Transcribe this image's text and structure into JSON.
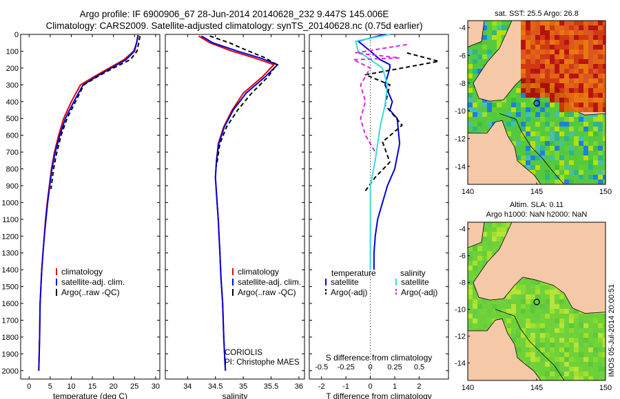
{
  "header": {
    "line1": "Argo profile: IF 6900906_67 28-Jun-2014 20140628_232 9.447S 145.006E",
    "line2": "Climatology: CARS2009. Satellite-adjusted climatology: synTS_20140628.nc (0.75d earlier)"
  },
  "colors": {
    "climatology": "#e00000",
    "satellite": "#0000dd",
    "argo": "#000000",
    "satellite_salinity": "#33dddd",
    "argo_salinity": "#dd22dd",
    "land": "#f5c8a8",
    "sea": "#66cc33"
  },
  "chart_data": [
    {
      "id": "temperature",
      "type": "line",
      "xlabel": "temperature (deg C)",
      "xlim": [
        -2,
        31
      ],
      "xticks": [
        0,
        5,
        10,
        15,
        20,
        25,
        30
      ],
      "ylim": [
        0,
        2050
      ],
      "yticks": [
        0,
        100,
        200,
        300,
        400,
        500,
        600,
        700,
        800,
        900,
        1000,
        1100,
        1200,
        1300,
        1400,
        1500,
        1600,
        1700,
        1800,
        1900,
        2000
      ],
      "legend": [
        "climatology",
        "satellite-adj. clim.",
        "Argo(..raw -QC)"
      ],
      "series": [
        {
          "name": "climatology",
          "color": "#e00000",
          "dash": "",
          "x": [
            25.9,
            25.5,
            24.8,
            22.5,
            19.0,
            15.5,
            12.2,
            10.0,
            8.2,
            7.0,
            6.0,
            5.3,
            4.8,
            4.3,
            3.9,
            3.6,
            3.3,
            3.0,
            2.8,
            2.6,
            2.5,
            2.3
          ],
          "y": [
            5,
            50,
            100,
            150,
            200,
            250,
            300,
            400,
            500,
            600,
            700,
            800,
            900,
            1000,
            1100,
            1200,
            1300,
            1400,
            1500,
            1600,
            1800,
            2000
          ]
        },
        {
          "name": "satellite-adj. clim.",
          "color": "#0000dd",
          "dash": "",
          "x": [
            25.8,
            25.5,
            25.0,
            23.0,
            19.5,
            16.0,
            12.8,
            10.6,
            8.6,
            7.3,
            6.2,
            5.4,
            4.9,
            4.4,
            4.0,
            3.6,
            3.3,
            3.0,
            2.8,
            2.6,
            2.5,
            2.3
          ],
          "y": [
            5,
            50,
            100,
            150,
            200,
            250,
            300,
            400,
            500,
            600,
            700,
            800,
            900,
            1000,
            1100,
            1200,
            1300,
            1400,
            1500,
            1600,
            1800,
            2000
          ]
        },
        {
          "name": "Argo(..raw -QC)",
          "color": "#000000",
          "dash": "6,4",
          "x": [
            26.3,
            26.0,
            25.6,
            24.0,
            20.0,
            16.3,
            13.0,
            11.0,
            9.0,
            7.6,
            6.6,
            5.8,
            5.2
          ],
          "y": [
            10,
            50,
            100,
            150,
            200,
            250,
            300,
            400,
            500,
            600,
            700,
            800,
            920
          ]
        }
      ]
    },
    {
      "id": "salinity",
      "type": "line",
      "xlabel": "salinity",
      "xlim": [
        33.6,
        36.1
      ],
      "xticks": [
        34,
        34.5,
        35,
        35.5,
        36
      ],
      "ylim": [
        0,
        2050
      ],
      "legend": [
        "climatology",
        "satellite-adj. clim.",
        "Argo(..raw -QC)"
      ],
      "annotations": [
        "CORIOLIS",
        "PI: Christophe MAES"
      ],
      "series": [
        {
          "name": "climatology",
          "color": "#e00000",
          "dash": "",
          "x": [
            34.2,
            34.4,
            34.8,
            35.2,
            35.55,
            35.35,
            35.0,
            34.8,
            34.65,
            34.55,
            34.52,
            34.5,
            34.52,
            34.55,
            34.58,
            34.6,
            34.63,
            34.65,
            34.67,
            34.68
          ],
          "y": [
            10,
            50,
            100,
            140,
            180,
            250,
            350,
            450,
            550,
            650,
            750,
            850,
            950,
            1100,
            1300,
            1450,
            1600,
            1800,
            1950,
            2000
          ]
        },
        {
          "name": "satellite-adj. clim.",
          "color": "#0000dd",
          "dash": "",
          "x": [
            34.25,
            34.45,
            34.9,
            35.3,
            35.62,
            35.4,
            35.05,
            34.82,
            34.66,
            34.56,
            34.52,
            34.5,
            34.52,
            34.55,
            34.58,
            34.6,
            34.63,
            34.65,
            34.67,
            34.68
          ],
          "y": [
            10,
            50,
            100,
            140,
            180,
            250,
            350,
            450,
            550,
            650,
            750,
            850,
            950,
            1100,
            1300,
            1450,
            1600,
            1800,
            1950,
            2000
          ]
        },
        {
          "name": "Argo(..raw -QC)",
          "color": "#000000",
          "dash": "6,4",
          "x": [
            34.4,
            34.75,
            35.1,
            35.4,
            35.6,
            35.45,
            35.15,
            34.9,
            34.7,
            34.58,
            34.52
          ],
          "y": [
            10,
            50,
            100,
            140,
            180,
            250,
            350,
            450,
            550,
            650,
            780
          ]
        }
      ]
    },
    {
      "id": "difference",
      "type": "line",
      "xlabel": "T difference from climatology",
      "xlabel2": "S difference from climatology",
      "xlim": [
        -2.5,
        3.2
      ],
      "xticks": [
        -2,
        -1,
        0,
        1,
        2
      ],
      "xticks2_values": [
        -2,
        -1,
        0,
        1,
        2
      ],
      "xticks2_labels": [
        "-0.5",
        "-0.25",
        "0",
        "0.25",
        "0.5"
      ],
      "ylim": [
        0,
        2050
      ],
      "legend": {
        "temperature_header": "temperature",
        "salinity_header": "salinity",
        "items": [
          "satellite",
          "Argo(-adj)",
          "satellite",
          "Argo(-adj)"
        ]
      },
      "series": [
        {
          "name": "temperature satellite",
          "color": "#0000dd",
          "dash": "",
          "x": [
            0.6,
            -0.5,
            0.0,
            0.4,
            0.8,
            0.8,
            0.6,
            0.9,
            0.8,
            1.1,
            1.2,
            1.0,
            0.7,
            0.5,
            0.3,
            0.2,
            0.15,
            0.15
          ],
          "y": [
            0,
            40,
            100,
            150,
            180,
            200,
            300,
            400,
            450,
            500,
            650,
            800,
            900,
            1000,
            1100,
            1200,
            1300,
            1400
          ]
        },
        {
          "name": "temperature Argo(-adj)",
          "color": "#000000",
          "dash": "6,4",
          "x": [
            1.5,
            2.8,
            1.3,
            -0.2,
            0.8,
            0.6,
            1.3,
            0.5,
            0.8,
            0.2,
            -0.2
          ],
          "y": [
            110,
            160,
            200,
            240,
            300,
            420,
            540,
            640,
            760,
            850,
            930
          ]
        },
        {
          "name": "salinity satellite",
          "color": "#33dddd",
          "dash": "",
          "x": [
            0.8,
            -0.6,
            -0.5,
            0.0,
            0.5,
            0.7,
            0.6,
            0.4,
            0.3,
            0.2,
            0.0,
            0.0,
            0.0
          ],
          "y": [
            0,
            40,
            100,
            150,
            200,
            300,
            420,
            550,
            650,
            750,
            900,
            1100,
            1400
          ]
        },
        {
          "name": "salinity Argo(-adj)",
          "color": "#dd22dd",
          "dash": "6,4",
          "x": [
            1.5,
            -0.6,
            1.2,
            -0.7,
            0.0,
            -0.4,
            -0.2,
            -0.4,
            -0.2,
            0.2
          ],
          "y": [
            60,
            110,
            140,
            150,
            200,
            300,
            400,
            500,
            600,
            700
          ]
        }
      ]
    }
  ],
  "maps": [
    {
      "id": "sst-map",
      "title1": "sat. SST: 25.5 Argo: 26.8",
      "title2": "",
      "xticks": [
        140,
        145,
        150
      ],
      "yticks": [
        -4,
        -6,
        -8,
        -10,
        -12,
        -14
      ],
      "xlim": [
        140,
        150
      ],
      "ylim": [
        -15.3,
        -3.5
      ],
      "style": "sst"
    },
    {
      "id": "sla-map",
      "title1": "Altim. SLA: 0.11",
      "title2": "Argo h1000: NaN h2000: NaN",
      "xticks": [
        140,
        145,
        150
      ],
      "yticks": [
        -4,
        -6,
        -8,
        -10,
        -12,
        -14
      ],
      "xlim": [
        140,
        150
      ],
      "ylim": [
        -15.3,
        -3.5
      ],
      "style": "sla"
    }
  ],
  "stamp": "IMOS 05-Jul-2014 20:00:51"
}
